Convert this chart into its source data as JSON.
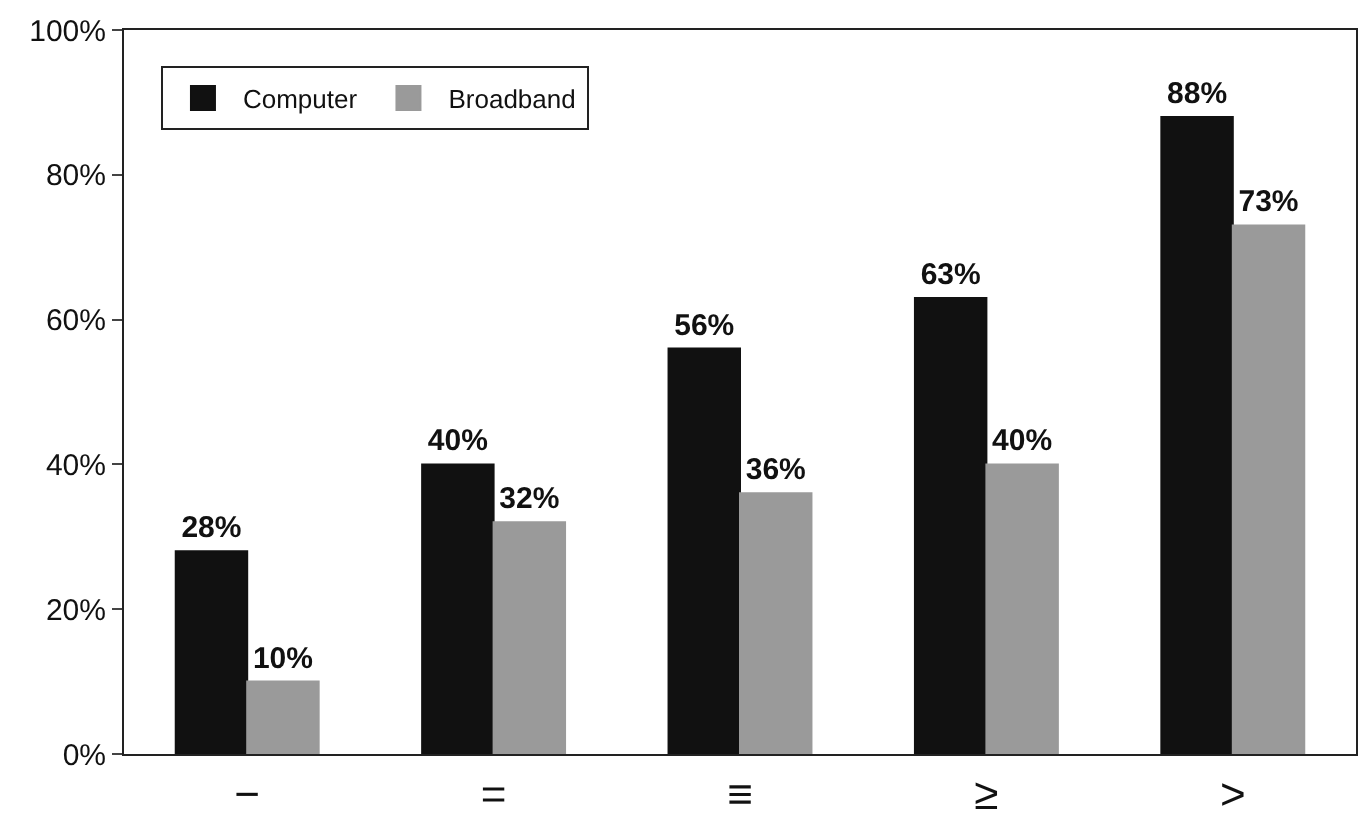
{
  "chart_data": {
    "type": "bar",
    "categories": [
      "−",
      "=",
      "≡",
      "≥",
      ">"
    ],
    "series": [
      {
        "name": "Computer",
        "color": "#111111",
        "values": [
          28,
          40,
          56,
          63,
          88
        ],
        "value_labels": [
          "28%",
          "40%",
          "56%",
          "63%",
          "88%"
        ]
      },
      {
        "name": "Broadband",
        "color": "#9a9a9a",
        "values": [
          10,
          32,
          36,
          40,
          73
        ],
        "value_labels": [
          "10%",
          "32%",
          "36%",
          "40%",
          "73%"
        ]
      }
    ],
    "ylim": [
      0,
      100
    ],
    "yticks": [
      {
        "value": 0,
        "label": "0%"
      },
      {
        "value": 20,
        "label": "20%"
      },
      {
        "value": 40,
        "label": "40%"
      },
      {
        "value": 60,
        "label": "60%"
      },
      {
        "value": 80,
        "label": "80%"
      },
      {
        "value": 100,
        "label": "100%"
      }
    ],
    "grid": false,
    "legend": "top left"
  }
}
